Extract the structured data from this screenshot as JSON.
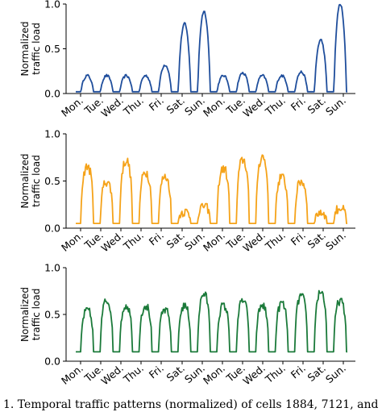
{
  "caption": "1.   Temporal traffic patterns (normalized) of cells 1884, 7121, and 1",
  "chart_data": [
    {
      "type": "line",
      "ylabel": [
        "Normalized",
        "traffic load"
      ],
      "ylim": [
        0,
        1.0
      ],
      "yticks": [
        "0.0",
        "0.5",
        "1.0"
      ],
      "xtick_labels": [
        "Mon.",
        "Tue.",
        "Wed.",
        "Thu.",
        "Fri.",
        "Sat.",
        "Sun.",
        "Mon.",
        "Tue.",
        "Wed.",
        "Thu.",
        "Fri.",
        "Sat.",
        "Sun."
      ],
      "color": "#1f4e9c",
      "daily_peaks": [
        0.2,
        0.2,
        0.2,
        0.2,
        0.32,
        0.78,
        0.92,
        0.2,
        0.23,
        0.2,
        0.2,
        0.24,
        0.6,
        1.0
      ],
      "night_level": 0.02
    },
    {
      "type": "line",
      "ylabel": [
        "Normalized",
        "traffic load"
      ],
      "ylim": [
        0,
        1.0
      ],
      "yticks": [
        "0.0",
        "0.5",
        "1.0"
      ],
      "xtick_labels": [
        "Mon.",
        "Tue.",
        "Wed.",
        "Thu.",
        "Fri.",
        "Sat.",
        "Sun.",
        "Mon.",
        "Tue.",
        "Wed.",
        "Thu.",
        "Fri.",
        "Sat.",
        "Sun."
      ],
      "color": "#f5a31a",
      "daily_peaks": [
        0.66,
        0.5,
        0.72,
        0.6,
        0.55,
        0.18,
        0.24,
        0.64,
        0.73,
        0.76,
        0.55,
        0.5,
        0.17,
        0.22
      ],
      "night_level": 0.05
    },
    {
      "type": "line",
      "ylabel": [
        "Normalized",
        "traffic load"
      ],
      "ylim": [
        0,
        1.0
      ],
      "yticks": [
        "0.0",
        "0.5",
        "1.0"
      ],
      "xtick_labels": [
        "Mon.",
        "Tue.",
        "Wed.",
        "Thu.",
        "Fri.",
        "Sat.",
        "Sun.",
        "Mon.",
        "Tue.",
        "Wed.",
        "Thu.",
        "Fri.",
        "Sat.",
        "Sun."
      ],
      "color": "#1b7a3a",
      "daily_peaks": [
        0.55,
        0.65,
        0.6,
        0.6,
        0.55,
        0.6,
        0.72,
        0.6,
        0.65,
        0.6,
        0.62,
        0.7,
        0.75,
        0.65
      ],
      "night_level": 0.1
    }
  ]
}
